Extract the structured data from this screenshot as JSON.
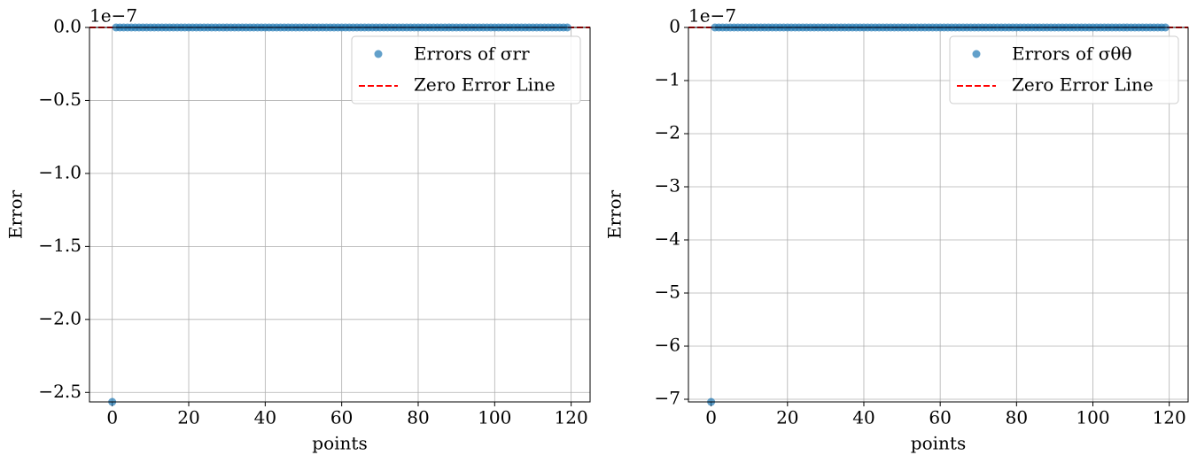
{
  "chart_data": [
    {
      "type": "scatter",
      "ylabel": "Error",
      "xlabel": "points",
      "offset_text": "1e−7",
      "xlim": [
        -5.95,
        124.95
      ],
      "xticks": [
        0,
        20,
        40,
        60,
        80,
        100,
        120
      ],
      "ylim": [
        -2.565,
        0
      ],
      "yticks": [
        {
          "value": 0,
          "label": "0.0"
        },
        {
          "value": -0.5,
          "label": "−0.5"
        },
        {
          "value": -1,
          "label": "−1.0"
        },
        {
          "value": -1.5,
          "label": "−1.5"
        },
        {
          "value": -2,
          "label": "−2.0"
        },
        {
          "value": -2.5,
          "label": "−2.5"
        }
      ],
      "grid": true,
      "legend": "upper right",
      "x": [
        0,
        1,
        2,
        3,
        4,
        5,
        6,
        7,
        8,
        9,
        10,
        11,
        12,
        13,
        14,
        15,
        16,
        17,
        18,
        19,
        20,
        21,
        22,
        23,
        24,
        25,
        26,
        27,
        28,
        29,
        30,
        31,
        32,
        33,
        34,
        35,
        36,
        37,
        38,
        39,
        40,
        41,
        42,
        43,
        44,
        45,
        46,
        47,
        48,
        49,
        50,
        51,
        52,
        53,
        54,
        55,
        56,
        57,
        58,
        59,
        60,
        61,
        62,
        63,
        64,
        65,
        66,
        67,
        68,
        69,
        70,
        71,
        72,
        73,
        74,
        75,
        76,
        77,
        78,
        79,
        80,
        81,
        82,
        83,
        84,
        85,
        86,
        87,
        88,
        89,
        90,
        91,
        92,
        93,
        94,
        95,
        96,
        97,
        98,
        99,
        100,
        101,
        102,
        103,
        104,
        105,
        106,
        107,
        108,
        109,
        110,
        111,
        112,
        113,
        114,
        115,
        116,
        117,
        118,
        119
      ],
      "series": [
        {
          "name": "Errors of σrr",
          "color": "#1f77b4",
          "values": [
            -2.565,
            0,
            0,
            0,
            0,
            0,
            0,
            0,
            0,
            0,
            0,
            0,
            0,
            0,
            0,
            0,
            0,
            0,
            0,
            0,
            0,
            0,
            0,
            0,
            0,
            0,
            0,
            0,
            0,
            0,
            0,
            0,
            0,
            0,
            0,
            0,
            0,
            0,
            0,
            0,
            0,
            0,
            0,
            0,
            0,
            0,
            0,
            0,
            0,
            0,
            0,
            0,
            0,
            0,
            0,
            0,
            0,
            0,
            0,
            0,
            0,
            0,
            0,
            0,
            0,
            0,
            0,
            0,
            0,
            0,
            0,
            0,
            0,
            0,
            0,
            0,
            0,
            0,
            0,
            0,
            0,
            0,
            0,
            0,
            0,
            0,
            0,
            0,
            0,
            0,
            0,
            0,
            0,
            0,
            0,
            0,
            0,
            0,
            0,
            0,
            0,
            0,
            0,
            0,
            0,
            0,
            0,
            0,
            0,
            0,
            0,
            0,
            0,
            0,
            0,
            0,
            0,
            0,
            0,
            0
          ]
        }
      ],
      "hline": {
        "name": "Zero Error Line",
        "value": 0,
        "color": "#ff0000"
      }
    },
    {
      "type": "scatter",
      "ylabel": "Error",
      "xlabel": "points",
      "offset_text": "1e−7",
      "xlim": [
        -5.95,
        124.95
      ],
      "xticks": [
        0,
        20,
        40,
        60,
        80,
        100,
        120
      ],
      "ylim": [
        -7.05,
        0
      ],
      "yticks": [
        0,
        {
          "value": -1,
          "label": "−1"
        },
        {
          "value": -2,
          "label": "−2"
        },
        {
          "value": -3,
          "label": "−3"
        },
        {
          "value": -4,
          "label": "−4"
        },
        {
          "value": -5,
          "label": "−5"
        },
        {
          "value": -6,
          "label": "−6"
        },
        {
          "value": -7,
          "label": "−7"
        }
      ],
      "grid": true,
      "legend": "upper right",
      "x": [
        0,
        1,
        2,
        3,
        4,
        5,
        6,
        7,
        8,
        9,
        10,
        11,
        12,
        13,
        14,
        15,
        16,
        17,
        18,
        19,
        20,
        21,
        22,
        23,
        24,
        25,
        26,
        27,
        28,
        29,
        30,
        31,
        32,
        33,
        34,
        35,
        36,
        37,
        38,
        39,
        40,
        41,
        42,
        43,
        44,
        45,
        46,
        47,
        48,
        49,
        50,
        51,
        52,
        53,
        54,
        55,
        56,
        57,
        58,
        59,
        60,
        61,
        62,
        63,
        64,
        65,
        66,
        67,
        68,
        69,
        70,
        71,
        72,
        73,
        74,
        75,
        76,
        77,
        78,
        79,
        80,
        81,
        82,
        83,
        84,
        85,
        86,
        87,
        88,
        89,
        90,
        91,
        92,
        93,
        94,
        95,
        96,
        97,
        98,
        99,
        100,
        101,
        102,
        103,
        104,
        105,
        106,
        107,
        108,
        109,
        110,
        111,
        112,
        113,
        114,
        115,
        116,
        117,
        118,
        119
      ],
      "series": [
        {
          "name": "Errors of σθθ",
          "color": "#1f77b4",
          "values": [
            -7.05,
            0,
            0,
            0,
            0,
            0,
            0,
            0,
            0,
            0,
            0,
            0,
            0,
            0,
            0,
            0,
            0,
            0,
            0,
            0,
            0,
            0,
            0,
            0,
            0,
            0,
            0,
            0,
            0,
            0,
            0,
            0,
            0,
            0,
            0,
            0,
            0,
            0,
            0,
            0,
            0,
            0,
            0,
            0,
            0,
            0,
            0,
            0,
            0,
            0,
            0,
            0,
            0,
            0,
            0,
            0,
            0,
            0,
            0,
            0,
            0,
            0,
            0,
            0,
            0,
            0,
            0,
            0,
            0,
            0,
            0,
            0,
            0,
            0,
            0,
            0,
            0,
            0,
            0,
            0,
            0,
            0,
            0,
            0,
            0,
            0,
            0,
            0,
            0,
            0,
            0,
            0,
            0,
            0,
            0,
            0,
            0,
            0,
            0,
            0,
            0,
            0,
            0,
            0,
            0,
            0,
            0,
            0,
            0,
            0,
            0,
            0,
            0,
            0,
            0,
            0,
            0,
            0,
            0,
            0
          ]
        }
      ],
      "hline": {
        "name": "Zero Error Line",
        "value": 0,
        "color": "#ff0000"
      }
    }
  ]
}
